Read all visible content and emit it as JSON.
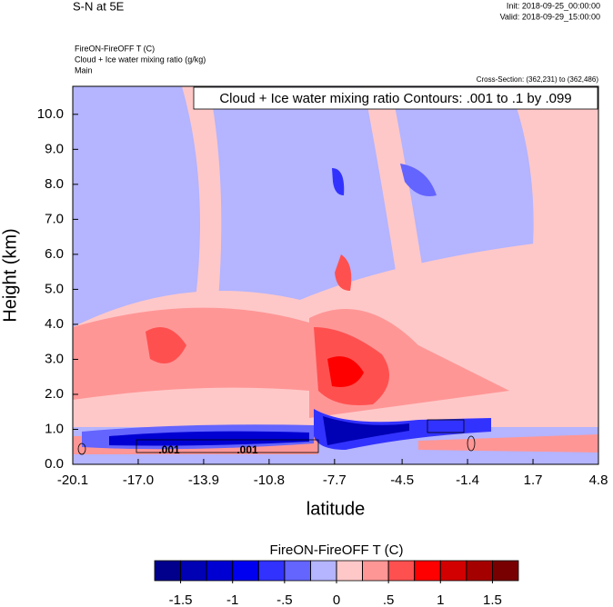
{
  "header": {
    "title": "S-N at 5E",
    "init": "Init: 2018-09-25_00:00:00",
    "valid": "Valid: 2018-09-29_15:00:00",
    "field1": "FireON-FireOFF T   (C)",
    "field2": "Cloud + Ice water mixing ratio   (g/kg)",
    "main": "Main",
    "cross_section": "Cross-Section: (362,231) to (362,486)"
  },
  "chart_data": {
    "type": "contour",
    "annotation": "Cloud + Ice water mixing ratio Contours: .001 to .1 by .099",
    "x_label": "latitude",
    "y_label": "Height (km)",
    "xlim": [
      -20.1,
      4.8
    ],
    "xticks": [
      -20.1,
      {
        "value": -17,
        "label": "-17.0"
      },
      -13.9,
      -10.8,
      -7.7,
      -4.5,
      -1.4,
      1.7,
      4.8
    ],
    "ylim": [
      0,
      10.8
    ],
    "yticks": [
      {
        "value": 0,
        "label": "0.0"
      },
      {
        "value": 1,
        "label": "1.0"
      },
      {
        "value": 2,
        "label": "2.0"
      },
      {
        "value": 3,
        "label": "3.0"
      },
      {
        "value": 4,
        "label": "4.0"
      },
      {
        "value": 5,
        "label": "5.0"
      },
      {
        "value": 6,
        "label": "6.0"
      },
      {
        "value": 7,
        "label": "7.0"
      },
      {
        "value": 8,
        "label": "8.0"
      },
      {
        "value": 9,
        "label": "9.0"
      },
      {
        "value": 10,
        "label": "10.0"
      }
    ],
    "contour_labels": [
      ".001",
      ".001"
    ],
    "colorbar": {
      "title": "FireON-FireOFF T  (C)",
      "levels": [
        -1.5,
        -1.25,
        -1,
        -0.75,
        -0.5,
        -0.25,
        0,
        0.25,
        0.5,
        0.75,
        1,
        1.25,
        1.5
      ],
      "ticks": [
        {
          "value": -1.5,
          "label": "-1.5"
        },
        {
          "value": -1,
          "label": "-1"
        },
        {
          "value": -0.5,
          "label": "-.5"
        },
        0,
        {
          "value": 0.5,
          "label": ".5"
        },
        1,
        1.5
      ],
      "colors": [
        "#00008c",
        "#0000b4",
        "#0000d2",
        "#0000f0",
        "#3232ff",
        "#6464ff",
        "#b4b4ff",
        "#ffc8c8",
        "#ff9696",
        "#ff5050",
        "#ff0000",
        "#d20000",
        "#a50000",
        "#780000"
      ]
    }
  }
}
